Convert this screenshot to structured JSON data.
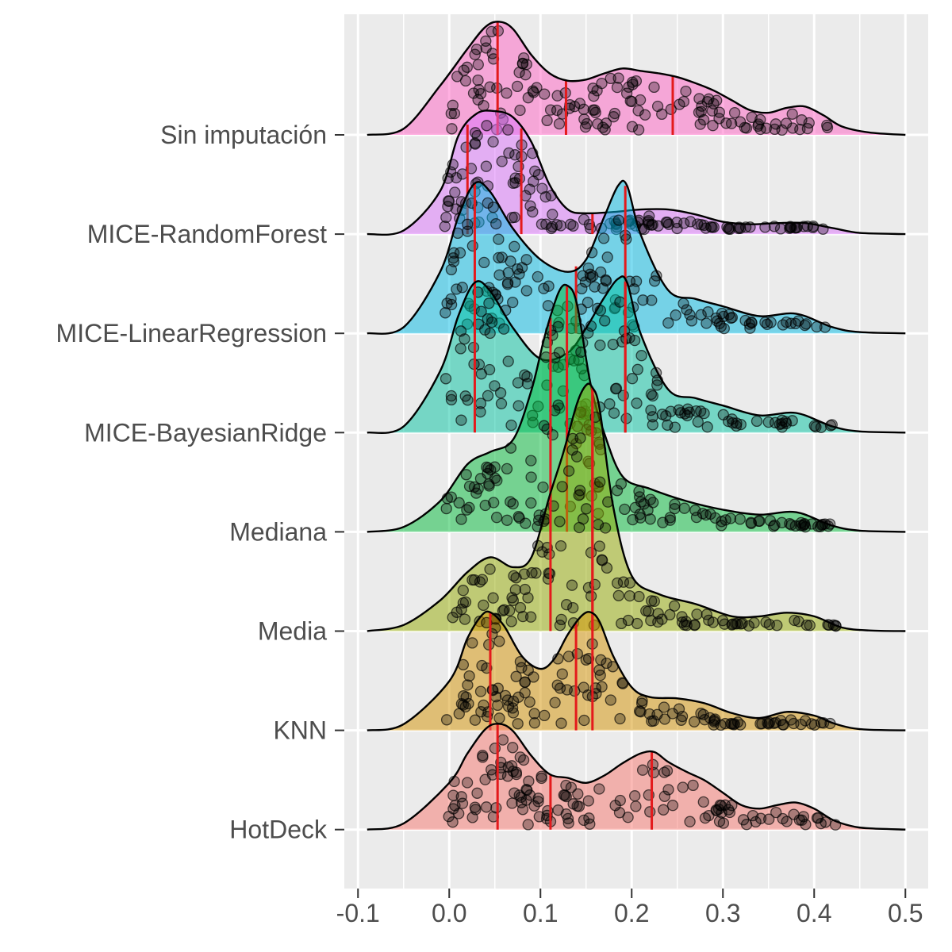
{
  "chart_data": {
    "type": "ridgeline",
    "title": "",
    "xlabel": "",
    "ylabel": "",
    "xlim": [
      -0.115,
      0.525
    ],
    "x_ticks": [
      -0.1,
      0.0,
      0.1,
      0.2,
      0.3,
      0.4,
      0.5
    ],
    "x_tick_labels": [
      "-0.1",
      "0.0",
      "0.1",
      "0.2",
      "0.3",
      "0.4",
      "0.5"
    ],
    "grid": true,
    "legend": "none",
    "quantile_lines": [
      0.25,
      0.5,
      0.75
    ],
    "quantile_line_color": "#e41a1c",
    "point_color": "#000000",
    "series": [
      {
        "name": "HotDeck",
        "color": "#f8766d",
        "density_x": [
          -0.09,
          -0.05,
          0.0,
          0.02,
          0.04,
          0.055,
          0.07,
          0.09,
          0.11,
          0.13,
          0.15,
          0.17,
          0.19,
          0.21,
          0.225,
          0.24,
          0.26,
          0.28,
          0.3,
          0.32,
          0.34,
          0.36,
          0.38,
          0.4,
          0.42,
          0.44,
          0.46,
          0.5
        ],
        "density_y": [
          0.0,
          0.05,
          0.38,
          0.62,
          0.82,
          0.86,
          0.8,
          0.6,
          0.45,
          0.42,
          0.38,
          0.44,
          0.54,
          0.62,
          0.63,
          0.55,
          0.47,
          0.4,
          0.3,
          0.2,
          0.17,
          0.2,
          0.22,
          0.17,
          0.08,
          0.03,
          0.01,
          0.0
        ],
        "quantiles": [
          0.053,
          0.111,
          0.222
        ]
      },
      {
        "name": "KNN",
        "color": "#d39200",
        "density_x": [
          -0.09,
          -0.05,
          0.0,
          0.02,
          0.035,
          0.045,
          0.06,
          0.08,
          0.1,
          0.115,
          0.13,
          0.145,
          0.155,
          0.165,
          0.18,
          0.2,
          0.22,
          0.25,
          0.28,
          0.31,
          0.34,
          0.37,
          0.4,
          0.42,
          0.44,
          0.46,
          0.5
        ],
        "density_y": [
          0.0,
          0.05,
          0.4,
          0.75,
          0.93,
          0.96,
          0.85,
          0.6,
          0.5,
          0.58,
          0.78,
          0.93,
          0.96,
          0.88,
          0.6,
          0.35,
          0.27,
          0.26,
          0.22,
          0.14,
          0.1,
          0.15,
          0.12,
          0.06,
          0.02,
          0.005,
          0.0
        ],
        "quantiles": [
          0.045,
          0.139,
          0.157
        ]
      },
      {
        "name": "Media",
        "color": "#93aa00",
        "density_x": [
          -0.09,
          -0.05,
          -0.01,
          0.02,
          0.045,
          0.07,
          0.09,
          0.11,
          0.125,
          0.14,
          0.15,
          0.157,
          0.165,
          0.18,
          0.2,
          0.23,
          0.27,
          0.31,
          0.34,
          0.37,
          0.4,
          0.43,
          0.46,
          0.5
        ],
        "density_y": [
          0.0,
          0.05,
          0.25,
          0.48,
          0.6,
          0.52,
          0.6,
          1.1,
          1.45,
          1.85,
          2.0,
          1.98,
          1.8,
          1.0,
          0.45,
          0.3,
          0.22,
          0.12,
          0.12,
          0.15,
          0.12,
          0.03,
          0.005,
          0.0
        ],
        "quantiles": [
          0.111,
          0.157,
          0.157
        ]
      },
      {
        "name": "Mediana",
        "color": "#00ba38",
        "density_x": [
          -0.09,
          -0.05,
          -0.01,
          0.02,
          0.045,
          0.07,
          0.09,
          0.105,
          0.12,
          0.13,
          0.14,
          0.155,
          0.17,
          0.19,
          0.22,
          0.26,
          0.3,
          0.34,
          0.38,
          0.42,
          0.45,
          0.5
        ],
        "density_y": [
          0.0,
          0.04,
          0.25,
          0.55,
          0.65,
          0.75,
          1.15,
          1.6,
          1.95,
          2.0,
          1.85,
          1.2,
          0.8,
          0.45,
          0.35,
          0.25,
          0.18,
          0.14,
          0.16,
          0.05,
          0.01,
          0.0
        ],
        "quantiles": [
          0.111,
          0.129,
          0.157
        ]
      },
      {
        "name": "MICE-BayesianRidge",
        "color": "#00c19f",
        "density_x": [
          -0.09,
          -0.05,
          -0.01,
          0.01,
          0.028,
          0.045,
          0.07,
          0.1,
          0.13,
          0.15,
          0.17,
          0.185,
          0.195,
          0.21,
          0.24,
          0.27,
          0.3,
          0.34,
          0.38,
          0.42,
          0.45,
          0.5
        ],
        "density_y": [
          0.0,
          0.05,
          0.5,
          0.95,
          1.22,
          1.15,
          0.85,
          0.6,
          0.65,
          0.85,
          1.1,
          1.25,
          1.22,
          0.8,
          0.35,
          0.28,
          0.22,
          0.14,
          0.16,
          0.05,
          0.01,
          0.0
        ],
        "quantiles": [
          0.028,
          0.193,
          0.193
        ]
      },
      {
        "name": "MICE-LinearRegression",
        "color": "#00b9e3",
        "density_x": [
          -0.09,
          -0.05,
          -0.01,
          0.01,
          0.028,
          0.045,
          0.07,
          0.1,
          0.13,
          0.15,
          0.17,
          0.185,
          0.195,
          0.21,
          0.24,
          0.27,
          0.3,
          0.34,
          0.38,
          0.42,
          0.45,
          0.5
        ],
        "density_y": [
          0.0,
          0.05,
          0.5,
          0.95,
          1.22,
          1.15,
          0.85,
          0.6,
          0.5,
          0.6,
          0.95,
          1.2,
          1.2,
          0.8,
          0.35,
          0.28,
          0.22,
          0.14,
          0.16,
          0.05,
          0.01,
          0.0
        ],
        "quantiles": [
          0.028,
          0.139,
          0.193
        ]
      },
      {
        "name": "MICE-RandomForest",
        "color": "#db72fb",
        "density_x": [
          -0.09,
          -0.05,
          -0.01,
          0.01,
          0.03,
          0.05,
          0.07,
          0.09,
          0.11,
          0.13,
          0.15,
          0.18,
          0.21,
          0.24,
          0.27,
          0.3,
          0.33,
          0.36,
          0.39,
          0.42,
          0.45,
          0.5
        ],
        "density_y": [
          0.0,
          0.03,
          0.35,
          0.8,
          0.98,
          1.0,
          0.95,
          0.75,
          0.4,
          0.2,
          0.17,
          0.18,
          0.2,
          0.2,
          0.16,
          0.1,
          0.08,
          0.09,
          0.09,
          0.05,
          0.01,
          0.0
        ],
        "quantiles": [
          0.02,
          0.079,
          0.157
        ]
      },
      {
        "name": "Sin imputación",
        "color": "#ff61c3",
        "density_x": [
          -0.09,
          -0.05,
          -0.01,
          0.02,
          0.04,
          0.055,
          0.07,
          0.09,
          0.11,
          0.13,
          0.15,
          0.17,
          0.19,
          0.21,
          0.23,
          0.25,
          0.27,
          0.29,
          0.31,
          0.33,
          0.35,
          0.37,
          0.39,
          0.41,
          0.43,
          0.46,
          0.5
        ],
        "density_y": [
          0.0,
          0.05,
          0.4,
          0.7,
          0.88,
          0.92,
          0.86,
          0.65,
          0.5,
          0.44,
          0.45,
          0.5,
          0.54,
          0.52,
          0.5,
          0.47,
          0.42,
          0.36,
          0.28,
          0.2,
          0.18,
          0.22,
          0.23,
          0.16,
          0.07,
          0.02,
          0.0
        ],
        "quantiles": [
          0.053,
          0.128,
          0.245
        ]
      }
    ]
  }
}
